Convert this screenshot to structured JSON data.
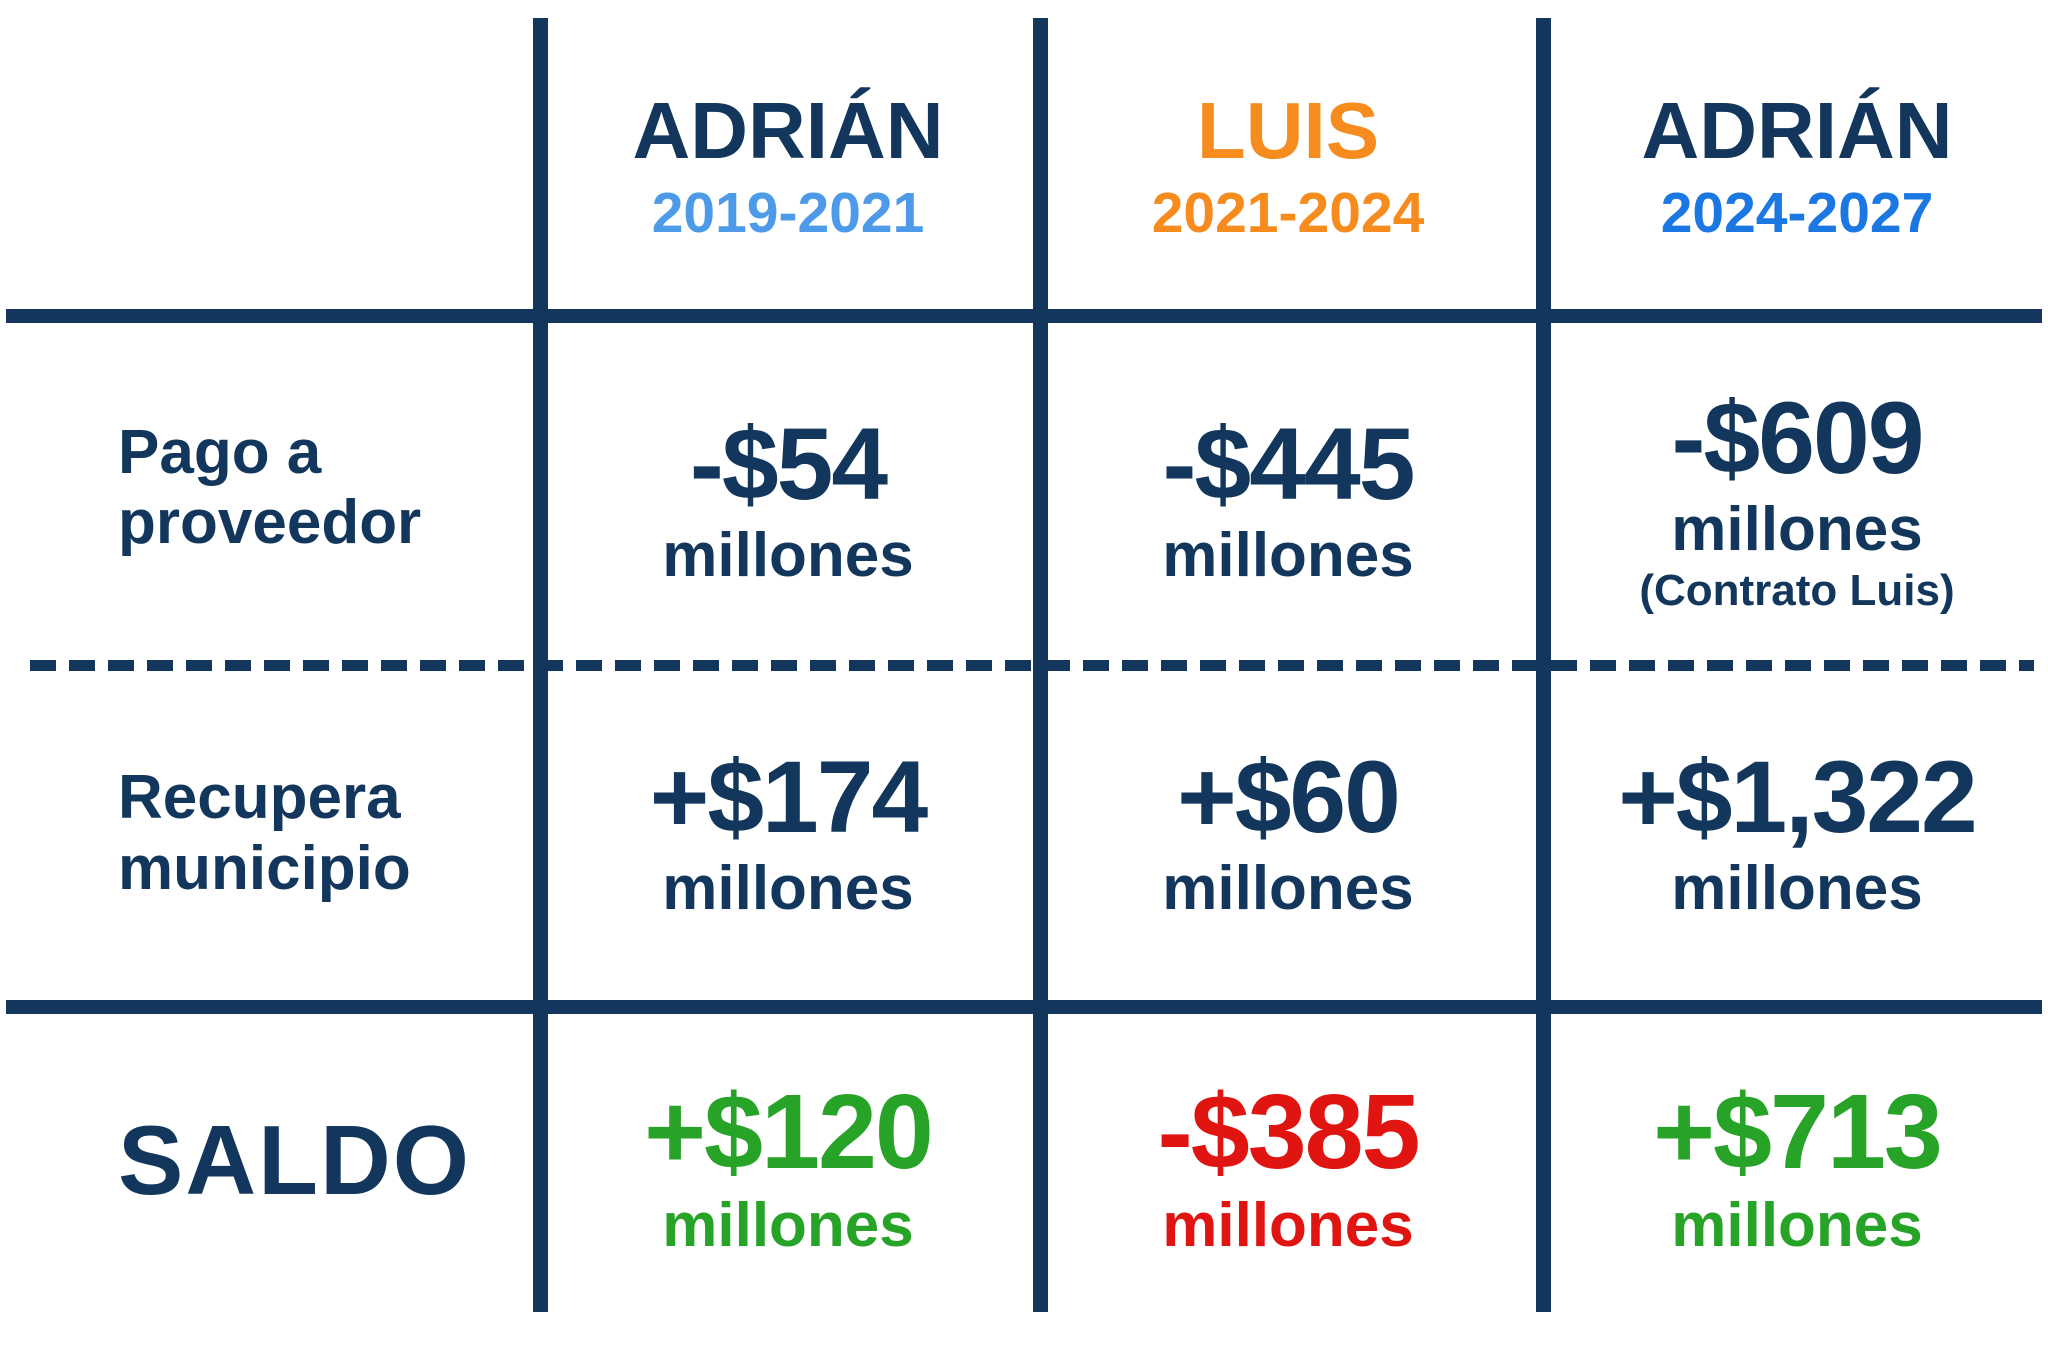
{
  "palette": {
    "navy": "#12365C",
    "light_blue": "#4D9BE8",
    "azure": "#1B78E2",
    "orange": "#F68B1E",
    "green": "#27A327",
    "red": "#E01410"
  },
  "table": {
    "columns": [
      {
        "name": "ADRIÁN",
        "period": "2019-2021",
        "name_color": "#12365C",
        "period_color": "#4D9BE8"
      },
      {
        "name": "LUIS",
        "period": "2021-2024",
        "name_color": "#F68B1E",
        "period_color": "#F68B1E"
      },
      {
        "name": "ADRIÁN",
        "period": "2024-2027",
        "name_color": "#12365C",
        "period_color": "#1B78E2"
      }
    ],
    "rows": [
      {
        "label": "Pago a proveedor",
        "values": [
          {
            "amount": "-$54",
            "unit": "millones",
            "color": "#12365C"
          },
          {
            "amount": "-$445",
            "unit": "millones",
            "color": "#12365C"
          },
          {
            "amount": "-$609",
            "unit": "millones",
            "note": "(Contrato Luis)",
            "color": "#12365C"
          }
        ]
      },
      {
        "label": "Recupera municipio",
        "values": [
          {
            "amount": "+$174",
            "unit": "millones",
            "color": "#12365C"
          },
          {
            "amount": "+$60",
            "unit": "millones",
            "color": "#12365C"
          },
          {
            "amount": "+$1,322",
            "unit": "millones",
            "color": "#12365C"
          }
        ]
      },
      {
        "label": "SALDO",
        "values": [
          {
            "amount": "+$120",
            "unit": "millones",
            "color": "#27A327"
          },
          {
            "amount": "-$385",
            "unit": "millones",
            "color": "#E01410"
          },
          {
            "amount": "+$713",
            "unit": "millones",
            "color": "#27A327"
          }
        ]
      }
    ]
  },
  "chart_data": {
    "type": "table",
    "columns": [
      "ADRIÁN 2019-2021",
      "LUIS 2021-2024",
      "ADRIÁN 2024-2027"
    ],
    "rows": [
      "Pago a proveedor",
      "Recupera municipio",
      "SALDO"
    ],
    "unit": "millones",
    "values": [
      [
        -54,
        -445,
        -609
      ],
      [
        174,
        60,
        1322
      ],
      [
        120,
        -385,
        713
      ]
    ],
    "cell_notes": [
      [
        null,
        null,
        "(Contrato Luis)"
      ],
      [
        null,
        null,
        null
      ],
      [
        null,
        null,
        null
      ]
    ],
    "value_colors": [
      [
        "#12365C",
        "#12365C",
        "#12365C"
      ],
      [
        "#12365C",
        "#12365C",
        "#12365C"
      ],
      [
        "#27A327",
        "#E01410",
        "#27A327"
      ]
    ]
  }
}
